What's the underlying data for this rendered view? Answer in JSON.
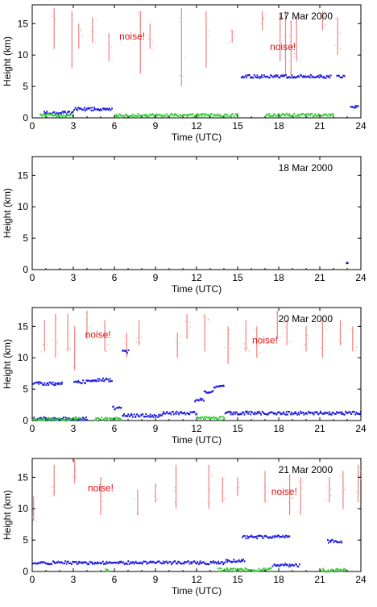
{
  "chart_data": [
    {
      "type": "scatter",
      "date_label": "17 Mar 2000",
      "xlabel": "Time (UTC)",
      "ylabel": "Height (km)",
      "xlim": [
        0,
        24
      ],
      "ylim": [
        0,
        18
      ],
      "xticks": [
        0,
        3,
        6,
        9,
        12,
        15,
        18,
        21,
        24
      ],
      "yticks": [
        0,
        5,
        10,
        15
      ],
      "annotations": [
        {
          "text": "noise!",
          "x": 7.3,
          "y": 12.5,
          "color": "#e01010"
        },
        {
          "text": "noise!",
          "x": 18.3,
          "y": 10.8,
          "color": "#e01010"
        }
      ],
      "series": [
        {
          "color": "#f08080",
          "kind": "noise",
          "spikes": [
            [
              1.6,
              11,
              17.5
            ],
            [
              2.9,
              8,
              17
            ],
            [
              3.4,
              11,
              15
            ],
            [
              4.4,
              12,
              16
            ],
            [
              5.6,
              9,
              13.5
            ],
            [
              7.9,
              7,
              17
            ],
            [
              8.6,
              11,
              15
            ],
            [
              10.9,
              5,
              17.5
            ],
            [
              12.7,
              8,
              17
            ],
            [
              14.6,
              12,
              14
            ],
            [
              16.8,
              14,
              17
            ],
            [
              18.1,
              9,
              16.5
            ],
            [
              18.5,
              7,
              17
            ],
            [
              18.9,
              7,
              15.5
            ],
            [
              19.3,
              9,
              16
            ],
            [
              21.2,
              14,
              17
            ],
            [
              22.3,
              10,
              16
            ]
          ]
        },
        {
          "color": "#1a1ae0",
          "kind": "cloud",
          "segments": [
            [
              0.8,
              3.0,
              0.8
            ],
            [
              3.0,
              5.8,
              1.4
            ],
            [
              15.2,
              21.8,
              6.6
            ],
            [
              22.2,
              22.8,
              6.6
            ],
            [
              23.2,
              23.8,
              1.8
            ]
          ]
        },
        {
          "color": "#33cc33",
          "kind": "cloud",
          "segments": [
            [
              0.5,
              3,
              0.4
            ],
            [
              6,
              15,
              0.4
            ],
            [
              17,
              22,
              0.5
            ]
          ]
        }
      ]
    },
    {
      "type": "scatter",
      "date_label": "18 Mar 2000",
      "xlabel": "Time (UTC)",
      "ylabel": "Height (km)",
      "xlim": [
        0,
        24
      ],
      "ylim": [
        0,
        18
      ],
      "xticks": [
        0,
        3,
        6,
        9,
        12,
        15,
        18,
        21,
        24
      ],
      "yticks": [
        0,
        5,
        10,
        15
      ],
      "annotations": [],
      "series": [
        {
          "color": "#1a1ae0",
          "kind": "cloud",
          "segments": [
            [
              22.9,
              23.0,
              1.2
            ]
          ]
        }
      ]
    },
    {
      "type": "scatter",
      "date_label": "20 Mar 2000",
      "xlabel": "Time (UTC)",
      "ylabel": "Height (km)",
      "xlim": [
        0,
        24
      ],
      "ylim": [
        0,
        18
      ],
      "xticks": [
        0,
        3,
        6,
        9,
        12,
        15,
        18,
        21,
        24
      ],
      "yticks": [
        0,
        5,
        10,
        15
      ],
      "annotations": [
        {
          "text": "noise!",
          "x": 4.8,
          "y": 13.2,
          "color": "#e01010"
        },
        {
          "text": "noise!",
          "x": 17.0,
          "y": 12.3,
          "color": "#e01010"
        }
      ],
      "series": [
        {
          "color": "#f08080",
          "kind": "noise",
          "spikes": [
            [
              0.9,
              11,
              16
            ],
            [
              1.7,
              10,
              17
            ],
            [
              2.6,
              11,
              17
            ],
            [
              3.1,
              8,
              15
            ],
            [
              4.0,
              13,
              17.5
            ],
            [
              5.3,
              11,
              16
            ],
            [
              6.9,
              10,
              14
            ],
            [
              7.8,
              12,
              16
            ],
            [
              10.6,
              10,
              14
            ],
            [
              11.3,
              13,
              17
            ],
            [
              12.6,
              11,
              17
            ],
            [
              14.3,
              9,
              15
            ],
            [
              15.6,
              11,
              16
            ],
            [
              16.4,
              10,
              15
            ],
            [
              17.9,
              13,
              17.5
            ],
            [
              18.6,
              12,
              16
            ],
            [
              20.0,
              11,
              15
            ],
            [
              21.2,
              10,
              16
            ],
            [
              22.5,
              12,
              16
            ],
            [
              23.4,
              11,
              15
            ]
          ]
        },
        {
          "color": "#1a1ae0",
          "kind": "cloud",
          "segments": [
            [
              0,
              2.2,
              5.9
            ],
            [
              3.0,
              4.0,
              6.2
            ],
            [
              4.0,
              5.8,
              6.5
            ],
            [
              6.5,
              7.0,
              11.0
            ],
            [
              11.8,
              12.5,
              3.3
            ],
            [
              12.5,
              13.2,
              4.5
            ],
            [
              13.2,
              14.0,
              5.4
            ],
            [
              14.0,
              24,
              1.2
            ],
            [
              5.8,
              6.5,
              2.0
            ],
            [
              6.5,
              9.5,
              0.8
            ],
            [
              9.5,
              12.0,
              1.2
            ],
            [
              0,
              4,
              0.3
            ]
          ]
        },
        {
          "color": "#33cc33",
          "kind": "cloud",
          "segments": [
            [
              0,
              3.5,
              0.2
            ],
            [
              4.5,
              6.5,
              0.3
            ],
            [
              12,
              14,
              0.4
            ]
          ]
        }
      ]
    },
    {
      "type": "scatter",
      "date_label": "21 Mar 2000",
      "xlabel": "Time (UTC)",
      "ylabel": "Height (km)",
      "xlim": [
        0,
        24
      ],
      "ylim": [
        0,
        18
      ],
      "xticks": [
        0,
        3,
        6,
        9,
        12,
        15,
        18,
        21,
        24
      ],
      "yticks": [
        0,
        5,
        10,
        15
      ],
      "annotations": [
        {
          "text": "noise!",
          "x": 5.0,
          "y": 12.8,
          "color": "#e01010"
        },
        {
          "text": "noise!",
          "x": 18.4,
          "y": 12.2,
          "color": "#e01010"
        }
      ],
      "series": [
        {
          "color": "#f08080",
          "kind": "noise",
          "spikes": [
            [
              0.1,
              8,
              12
            ],
            [
              1.6,
              12,
              17
            ],
            [
              3.1,
              14,
              18
            ],
            [
              5.0,
              9,
              15
            ],
            [
              7.7,
              9,
              13
            ],
            [
              9.0,
              11,
              14
            ],
            [
              10.5,
              10,
              17
            ],
            [
              12.9,
              10,
              17
            ],
            [
              13.9,
              11,
              15
            ],
            [
              15.0,
              12,
              15
            ],
            [
              17.0,
              11,
              16
            ],
            [
              18.8,
              9,
              15.5
            ],
            [
              19.6,
              9,
              15
            ],
            [
              21.7,
              11,
              15
            ],
            [
              22.7,
              10,
              16
            ],
            [
              23.8,
              11,
              17
            ]
          ]
        },
        {
          "color": "#1a1ae0",
          "kind": "cloud",
          "segments": [
            [
              0,
              14.0,
              1.4
            ],
            [
              14.0,
              15.5,
              1.7
            ],
            [
              15.3,
              18.8,
              5.5
            ],
            [
              21.5,
              22.6,
              4.8
            ],
            [
              17.5,
              19.5,
              1.0
            ]
          ]
        },
        {
          "color": "#33cc33",
          "kind": "cloud",
          "segments": [
            [
              5.3,
              5.6,
              0.3
            ],
            [
              13.5,
              17.5,
              0.3
            ],
            [
              21,
              23,
              0.2
            ]
          ]
        }
      ]
    }
  ]
}
